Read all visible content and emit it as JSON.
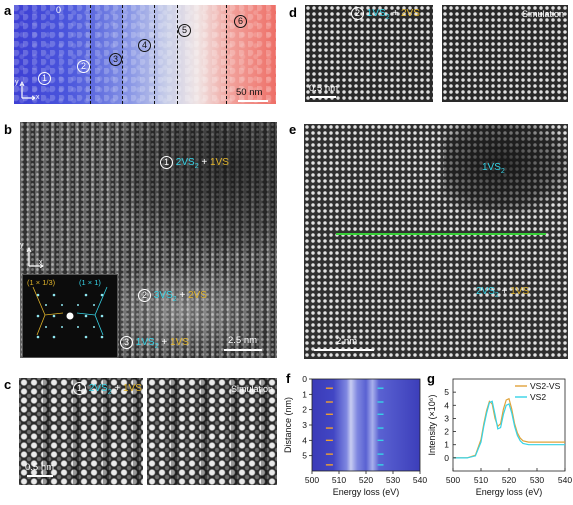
{
  "panels": {
    "a": {
      "label": "a",
      "regions": [
        "0",
        "1",
        "2",
        "3",
        "4",
        "5",
        "6"
      ],
      "scale_bar": "50 nm",
      "axes": {
        "x": "x",
        "y": "y"
      }
    },
    "b": {
      "label": "b",
      "region1": "1",
      "region1_cyan": "2VS",
      "region1_sub": "2",
      "region1_plus": " + ",
      "region1_gold": "1VS",
      "region2": "2",
      "region2_cyan": "3VS",
      "region2_sub": "2",
      "region2_plus": " + ",
      "region2_gold": "2VS",
      "region3": "3",
      "region3_cyan": "1VS",
      "region3_sub": "2",
      "region3_plus": " + ",
      "region3_gold": "1VS",
      "fft_left": "(1 × 1/3)",
      "fft_right": "(1 × 1)",
      "scale_bar": "2.5 nm",
      "axes": {
        "x": "x",
        "y": "y"
      }
    },
    "c": {
      "label": "c",
      "region": "1",
      "cyan": "2VS",
      "sub": "2",
      "plus": " + ",
      "gold": "1VS",
      "sim": "Simulation",
      "scale_bar": "0.5 nm"
    },
    "d": {
      "label": "d",
      "region": "2",
      "cyan": "1VS",
      "sub": "2",
      "plus": " + ",
      "gold": "2VS",
      "sim": "Simulation",
      "scale_bar": "0.5 nm"
    },
    "e": {
      "label": "e",
      "top_cyan": "1VS",
      "top_sub": "2",
      "bottom_cyan": "2VS",
      "bottom_sub": "2",
      "bottom_plus": " + ",
      "bottom_gold": "1VS",
      "scale_bar": "2 nm"
    },
    "f": {
      "label": "f",
      "ylabel": "Distance (nm)",
      "xlabel": "Energy loss (eV)"
    },
    "g": {
      "label": "g",
      "ylabel": "Intensity (×10⁶)",
      "xlabel": "Energy loss (eV)",
      "legend": [
        "VS2-VS",
        "VS2"
      ]
    }
  },
  "colors": {
    "cyan": "#36d3e6",
    "gold": "#e0b32a",
    "line_f_orange": "#f0a030",
    "green_line": "#38d038"
  },
  "chart_data": [
    {
      "type": "heatmap",
      "panel": "f",
      "xlabel": "Energy loss (eV)",
      "ylabel": "Distance (nm)",
      "xlim": [
        500,
        540
      ],
      "ylim": [
        0,
        6
      ],
      "x_ticks": [
        500,
        510,
        520,
        530,
        540
      ],
      "y_ticks": [
        0,
        1,
        2,
        3,
        4,
        5
      ],
      "orange_arrows_eV": 507,
      "cyan_arrows_eV": 525,
      "arrow_positions_nm": [
        0.6,
        1.5,
        2.3,
        3.2,
        4.0,
        4.9,
        5.6
      ]
    },
    {
      "type": "line",
      "panel": "g",
      "xlabel": "Energy loss (eV)",
      "ylabel": "Intensity (×10⁶)",
      "xlim": [
        500,
        540
      ],
      "ylim": [
        -1,
        6
      ],
      "x_ticks": [
        500,
        510,
        520,
        530,
        540
      ],
      "y_ticks": [
        0,
        1,
        2,
        3,
        4,
        5
      ],
      "legend_placement": "top-right",
      "x": [
        500,
        505,
        508,
        510,
        511,
        512,
        513,
        514,
        515,
        516,
        517,
        518,
        519,
        520,
        521,
        522,
        523,
        524,
        525,
        527,
        530,
        535,
        540
      ],
      "series": [
        {
          "name": "VS2-VS",
          "color": "#e0a33a",
          "values": [
            0.0,
            0.0,
            0.2,
            1.4,
            2.6,
            3.6,
            4.3,
            4.1,
            3.0,
            2.4,
            2.6,
            3.7,
            4.4,
            4.5,
            3.7,
            2.6,
            1.9,
            1.5,
            1.3,
            1.2,
            1.2,
            1.2,
            1.2
          ]
        },
        {
          "name": "VS2",
          "color": "#36d3e6",
          "values": [
            0.0,
            0.0,
            0.15,
            1.2,
            2.4,
            3.4,
            4.2,
            4.3,
            3.3,
            2.2,
            2.3,
            3.3,
            4.0,
            4.1,
            3.4,
            2.4,
            1.7,
            1.3,
            1.1,
            1.0,
            1.0,
            1.0,
            1.0
          ]
        }
      ]
    }
  ]
}
